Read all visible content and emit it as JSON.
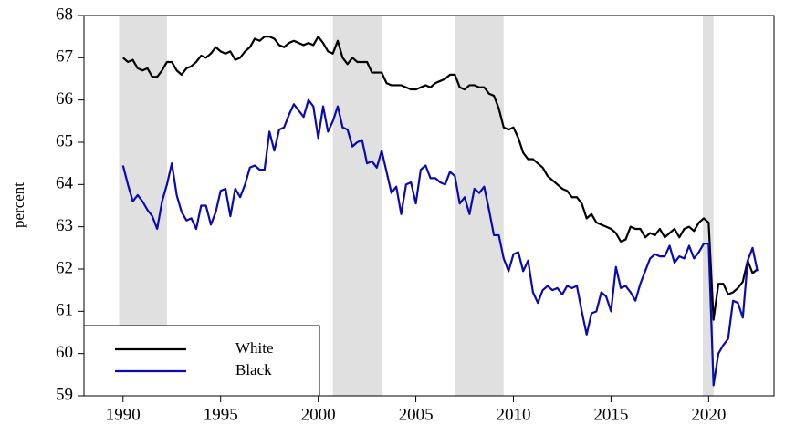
{
  "chart_data": {
    "type": "line",
    "ylabel": "percent",
    "xlim": [
      1988,
      2023.35
    ],
    "ylim": [
      59,
      68
    ],
    "xticks": [
      1990,
      1995,
      2000,
      2005,
      2010,
      2015,
      2020
    ],
    "yticks": [
      59,
      60,
      61,
      62,
      63,
      64,
      65,
      66,
      67,
      68
    ],
    "legend": "lower left",
    "shaded_periods": [
      [
        1989.8,
        1992.25
      ],
      [
        2000.75,
        2003.27
      ],
      [
        2007.0,
        2009.5
      ],
      [
        2019.7,
        2020.25
      ]
    ],
    "shade_color": "#e0e0e0",
    "x": [
      1990,
      1990.25,
      1990.5,
      1990.75,
      1991,
      1991.25,
      1991.5,
      1991.75,
      1992,
      1992.25,
      1992.5,
      1992.75,
      1993,
      1993.25,
      1993.5,
      1993.75,
      1994,
      1994.25,
      1994.5,
      1994.75,
      1995,
      1995.25,
      1995.5,
      1995.75,
      1996,
      1996.25,
      1996.5,
      1996.75,
      1997,
      1997.25,
      1997.5,
      1997.75,
      1998,
      1998.25,
      1998.5,
      1998.75,
      1999,
      1999.25,
      1999.5,
      1999.75,
      2000,
      2000.25,
      2000.5,
      2000.75,
      2001,
      2001.25,
      2001.5,
      2001.75,
      2002,
      2002.25,
      2002.5,
      2002.75,
      2003,
      2003.25,
      2003.5,
      2003.75,
      2004,
      2004.25,
      2004.5,
      2004.75,
      2005,
      2005.25,
      2005.5,
      2005.75,
      2006,
      2006.25,
      2006.5,
      2006.75,
      2007,
      2007.25,
      2007.5,
      2007.75,
      2008,
      2008.25,
      2008.5,
      2008.75,
      2009,
      2009.25,
      2009.5,
      2009.75,
      2010,
      2010.25,
      2010.5,
      2010.75,
      2011,
      2011.25,
      2011.5,
      2011.75,
      2012,
      2012.25,
      2012.5,
      2012.75,
      2013,
      2013.25,
      2013.5,
      2013.75,
      2014,
      2014.25,
      2014.5,
      2014.75,
      2015,
      2015.25,
      2015.5,
      2015.75,
      2016,
      2016.25,
      2016.5,
      2016.75,
      2017,
      2017.25,
      2017.5,
      2017.75,
      2018,
      2018.25,
      2018.5,
      2018.75,
      2019,
      2019.25,
      2019.5,
      2019.75,
      2020,
      2020.25,
      2020.5,
      2020.75,
      2021,
      2021.25,
      2021.5,
      2021.75,
      2022,
      2022.25,
      2022.5
    ],
    "series": [
      {
        "name": "White",
        "color": "#000000",
        "values": [
          67.0,
          66.9,
          66.95,
          66.75,
          66.7,
          66.75,
          66.55,
          66.55,
          66.7,
          66.9,
          66.9,
          66.7,
          66.6,
          66.75,
          66.8,
          66.9,
          67.05,
          67.0,
          67.1,
          67.25,
          67.15,
          67.1,
          67.15,
          66.95,
          67.0,
          67.15,
          67.25,
          67.45,
          67.4,
          67.5,
          67.5,
          67.45,
          67.3,
          67.25,
          67.35,
          67.4,
          67.35,
          67.3,
          67.35,
          67.3,
          67.5,
          67.35,
          67.15,
          67.1,
          67.4,
          67.0,
          66.85,
          67.0,
          66.9,
          66.9,
          66.9,
          66.65,
          66.65,
          66.65,
          66.4,
          66.35,
          66.35,
          66.35,
          66.3,
          66.25,
          66.25,
          66.3,
          66.35,
          66.3,
          66.4,
          66.45,
          66.5,
          66.6,
          66.6,
          66.3,
          66.25,
          66.35,
          66.35,
          66.3,
          66.3,
          66.15,
          66.1,
          65.8,
          65.35,
          65.3,
          65.35,
          65.1,
          64.75,
          64.6,
          64.6,
          64.5,
          64.4,
          64.2,
          64.1,
          64.0,
          63.9,
          63.85,
          63.7,
          63.7,
          63.55,
          63.2,
          63.3,
          63.1,
          63.05,
          63.0,
          62.95,
          62.85,
          62.65,
          62.7,
          63.0,
          62.95,
          62.95,
          62.75,
          62.85,
          62.8,
          62.95,
          62.75,
          62.85,
          62.95,
          62.75,
          62.95,
          63.0,
          62.9,
          63.1,
          63.2,
          63.1,
          60.8,
          61.65,
          61.65,
          61.4,
          61.45,
          61.55,
          61.7,
          62.2,
          61.9,
          62.0
        ]
      },
      {
        "name": "Black",
        "color": "#0a0ab0",
        "values": [
          64.45,
          64.0,
          63.6,
          63.75,
          63.6,
          63.4,
          63.25,
          62.95,
          63.6,
          64.0,
          64.5,
          63.75,
          63.35,
          63.15,
          63.2,
          62.95,
          63.5,
          63.5,
          63.05,
          63.35,
          63.85,
          63.9,
          63.25,
          63.9,
          63.7,
          64.0,
          64.4,
          64.45,
          64.35,
          64.35,
          65.25,
          64.8,
          65.3,
          65.35,
          65.65,
          65.9,
          65.75,
          65.6,
          66.0,
          65.85,
          65.1,
          65.85,
          65.25,
          65.5,
          65.85,
          65.35,
          65.3,
          64.9,
          65.0,
          65.05,
          64.5,
          64.55,
          64.4,
          64.8,
          64.3,
          63.8,
          63.95,
          63.3,
          64.0,
          64.05,
          63.55,
          64.35,
          64.45,
          64.15,
          64.15,
          64.05,
          64.0,
          64.3,
          64.2,
          63.55,
          63.7,
          63.3,
          63.9,
          63.8,
          63.95,
          63.4,
          62.8,
          62.8,
          62.25,
          61.95,
          62.35,
          62.4,
          61.95,
          62.2,
          61.45,
          61.2,
          61.5,
          61.6,
          61.5,
          61.55,
          61.4,
          61.6,
          61.55,
          61.6,
          61.0,
          60.45,
          60.95,
          61.0,
          61.45,
          61.35,
          61.0,
          62.05,
          61.55,
          61.6,
          61.45,
          61.25,
          61.65,
          61.95,
          62.25,
          62.35,
          62.3,
          62.3,
          62.55,
          62.15,
          62.3,
          62.25,
          62.55,
          62.25,
          62.4,
          62.6,
          62.6,
          59.25,
          60.0,
          60.2,
          60.35,
          61.25,
          61.2,
          60.85,
          62.2,
          62.5,
          61.95
        ]
      }
    ]
  }
}
